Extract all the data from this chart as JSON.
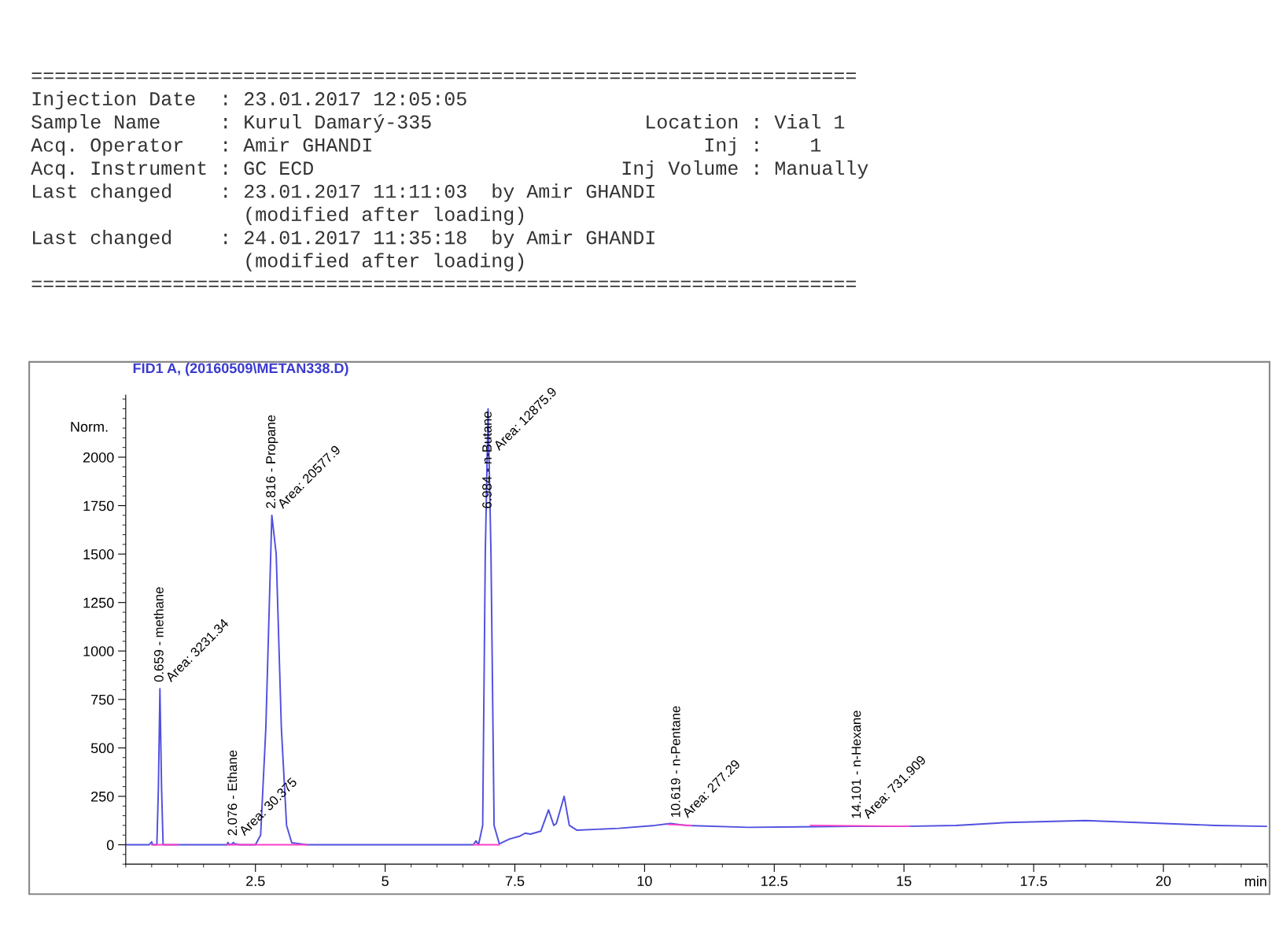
{
  "chart_data": {
    "type": "line",
    "title": "FID1 A, (20160509\\METAN338.D)",
    "xlabel": "min",
    "ylabel": "Norm.",
    "xlim": [
      0,
      22
    ],
    "ylim": [
      -100,
      2320
    ],
    "xticks": [
      2.5,
      5,
      7.5,
      10,
      12.5,
      15,
      17.5,
      20
    ],
    "yticks": [
      0,
      250,
      500,
      750,
      1000,
      1250,
      1500,
      1750,
      2000
    ],
    "grid": false,
    "legend": false,
    "marker": "none",
    "line_style": "solid",
    "series": [
      {
        "color": "#5050e0",
        "x": [
          0,
          0.45,
          0.5,
          0.52,
          0.6,
          0.63,
          0.659,
          0.69,
          0.72,
          1.95,
          1.97,
          2.0,
          2.05,
          2.076,
          2.1,
          2.2,
          2.5,
          2.6,
          2.7,
          2.816,
          2.9,
          3.0,
          3.1,
          3.2,
          3.5,
          6.7,
          6.75,
          6.8,
          6.88,
          6.93,
          6.984,
          7.04,
          7.1,
          7.2,
          7.4,
          7.6,
          7.7,
          7.8,
          8.0,
          8.15,
          8.25,
          8.3,
          8.45,
          8.55,
          8.7,
          9.5,
          10.2,
          10.5,
          10.8,
          12,
          14,
          15,
          16,
          17,
          18.5,
          19.5,
          21,
          22
        ],
        "values": [
          0,
          0,
          15,
          0,
          0,
          300,
          805,
          300,
          0,
          0,
          12,
          0,
          5,
          12,
          5,
          0,
          0,
          50,
          600,
          1700,
          1500,
          600,
          100,
          10,
          0,
          0,
          20,
          0,
          100,
          1500,
          2250,
          1500,
          100,
          5,
          30,
          45,
          60,
          55,
          70,
          180,
          100,
          110,
          250,
          100,
          75,
          85,
          100,
          110,
          100,
          90,
          95,
          95,
          100,
          115,
          125,
          115,
          100,
          95
        ]
      },
      {
        "color": "#ff40c8",
        "x": [
          0.5,
          1.0,
          1.5,
          1.95,
          3.5,
          5,
          6.7,
          7.2,
          9,
          10.45,
          10.9,
          12,
          13.2,
          15.1
        ],
        "values": [
          0,
          0,
          null,
          0,
          0,
          null,
          0,
          0,
          null,
          105,
          100,
          null,
          100,
          95
        ]
      }
    ],
    "annotations": [
      "======================================================================",
      "Injection Date  : 23.01.2017 12:05:05",
      "Sample Name     : Kurul Damarý-335                  Location : Vial 1",
      "Acq. Operator   : Amir GHANDI                            Inj :    1",
      "Acq. Instrument : GC ECD                          Inj Volume : Manually",
      "Last changed    : 23.01.2017 11:11:03  by Amir GHANDI",
      "                  (modified after loading)",
      "Last changed    : 24.01.2017 11:35:18  by Amir GHANDI",
      "                  (modified after loading)",
      "======================================================================",
      {
        "text": "0.659 - methane",
        "x": 0.659,
        "y": 805
      },
      {
        "text": "Area: 3231.34",
        "x": 0.659,
        "y": 805
      },
      {
        "text": "2.076 - Ethane",
        "x": 2.076,
        "y": 12
      },
      {
        "text": "Area: 30.375",
        "x": 2.076,
        "y": 12
      },
      {
        "text": "2.816 - Propane",
        "x": 2.816,
        "y": 1700
      },
      {
        "text": "Area: 20577.9",
        "x": 2.816,
        "y": 1700
      },
      {
        "text": "6.984 - n-Butane",
        "x": 6.984,
        "y": 1700
      },
      {
        "text": "Area: 12875.9",
        "x": 6.984,
        "y": 2000
      },
      {
        "text": "10.619 - n-Pentane",
        "x": 10.619,
        "y": 105
      },
      {
        "text": "Area: 277.29",
        "x": 10.619,
        "y": 105
      },
      {
        "text": "14.101 - n-Hexane",
        "x": 14.101,
        "y": 100
      },
      {
        "text": "Area: 731.909",
        "x": 14.101,
        "y": 100
      }
    ]
  }
}
